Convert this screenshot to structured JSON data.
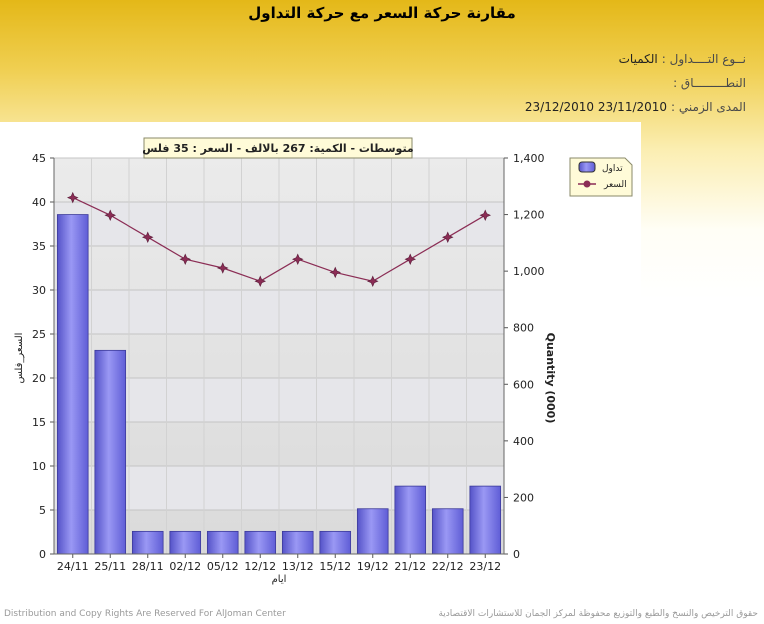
{
  "page": {
    "title": "مقارنة حركة السعر مع حركة التداول",
    "trade_type_label": "نــوع التــــداول :",
    "trade_type_value": "الكميات",
    "scope_label": "النطـــــــــاق :",
    "scope_value": "",
    "period_label": "المدى الزمني :",
    "period_value": "23/12/2010 23/11/2010"
  },
  "footer": {
    "left": "Distribution and Copy Rights Are Reserved For AlJoman Center",
    "right": "حقوق الترخيص والنسخ والطبع والتوزيع محفوظة لمركز الجمان للاستشارات الاقتصادية"
  },
  "chart_data": {
    "type": "bar",
    "title": "متوسطات - الكمية: 267 بالالف  - السعر : 35 فلس",
    "xlabel": "ايام",
    "ylabel_left": "السعر_فلس",
    "ylabel_right": "Quantity (000)",
    "categories": [
      "24/11",
      "25/11",
      "28/11",
      "02/12",
      "05/12",
      "12/12",
      "13/12",
      "15/12",
      "19/12",
      "21/12",
      "22/12",
      "23/12"
    ],
    "series": [
      {
        "name": "تداول",
        "type": "bar",
        "axis": "right",
        "color": "#7d7bea",
        "values": [
          1200,
          720,
          80,
          80,
          80,
          80,
          80,
          80,
          160,
          240,
          160,
          240
        ]
      },
      {
        "name": "السعر",
        "type": "line",
        "axis": "left",
        "color": "#8b2d55",
        "values": [
          40.5,
          38.5,
          36,
          33.5,
          32.5,
          31,
          33.5,
          32,
          31,
          33.5,
          36,
          38.5
        ]
      }
    ],
    "ylim_left": [
      0,
      45
    ],
    "ylim_right": [
      0,
      1400
    ],
    "yticks_left": [
      "0",
      "5",
      "10",
      "15",
      "20",
      "25",
      "30",
      "35",
      "40",
      "45"
    ],
    "yticks_right": [
      "0",
      "200",
      "400",
      "600",
      "800",
      "1,000",
      "1,200",
      "1,400"
    ],
    "grid": true,
    "legend_position": "right"
  }
}
